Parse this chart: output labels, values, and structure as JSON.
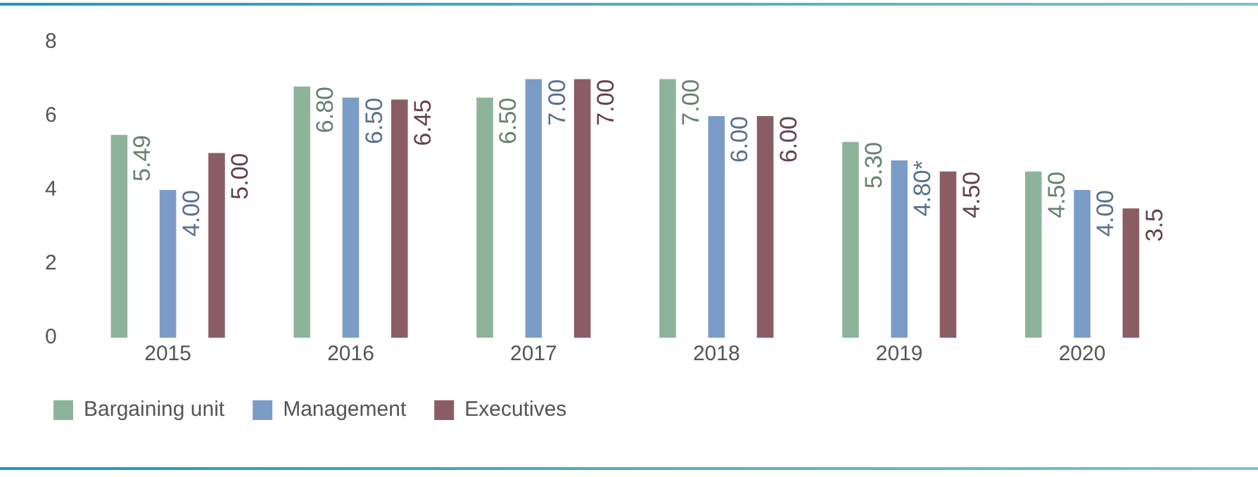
{
  "chart_data": {
    "type": "bar",
    "categories": [
      "2015",
      "2016",
      "2017",
      "2018",
      "2019",
      "2020"
    ],
    "series": [
      {
        "name": "Bargaining unit",
        "color": "#8db49a",
        "values": [
          5.49,
          6.8,
          6.5,
          7.0,
          5.3,
          4.5
        ],
        "value_labels": [
          "5.49",
          "6.80",
          "6.50",
          "7.00",
          "5.30",
          "4.50"
        ]
      },
      {
        "name": "Management",
        "color": "#7b9cc6",
        "values": [
          4.0,
          6.5,
          7.0,
          6.0,
          4.8,
          4.0
        ],
        "value_labels": [
          "4.00",
          "6.50",
          "7.00",
          "6.00",
          "4.80*",
          "4.00"
        ]
      },
      {
        "name": "Executives",
        "color": "#8a5c66",
        "values": [
          5.0,
          6.45,
          7.0,
          6.0,
          4.5,
          3.5
        ],
        "value_labels": [
          "5.00",
          "6.45",
          "7.00",
          "6.00",
          "4.50",
          "3.5"
        ]
      }
    ],
    "ylim": [
      0,
      8
    ],
    "yticks": [
      0,
      2,
      4,
      6,
      8
    ],
    "grid": false,
    "legend": "bottom left"
  }
}
